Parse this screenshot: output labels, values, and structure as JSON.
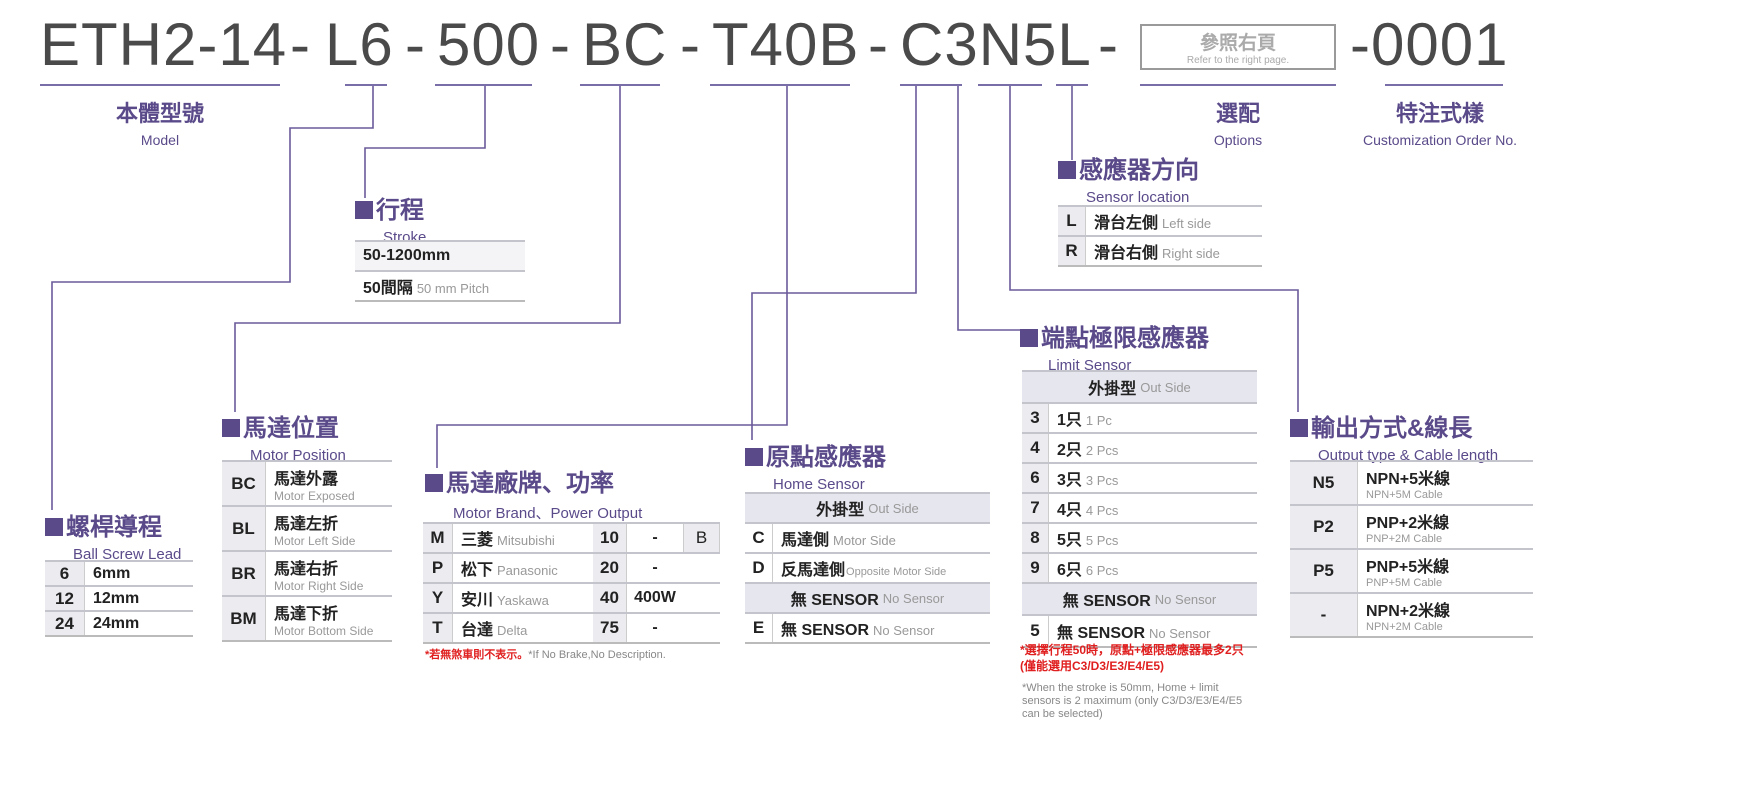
{
  "code": {
    "parts": [
      "ETH2-14",
      "-",
      "L6",
      "-",
      "500",
      "-",
      "BC",
      "-",
      "T40B",
      "-",
      "C3N5L",
      "-",
      "-0001"
    ],
    "options_box": {
      "zh": "參照右頁",
      "en": "Refer to the right page."
    }
  },
  "labels": {
    "model": {
      "zh": "本體型號",
      "en": "Model"
    },
    "options": {
      "zh": "選配",
      "en": "Options"
    },
    "custom": {
      "zh": "特注式樣",
      "en": "Customization Order No."
    }
  },
  "lead": {
    "zh": "螺桿導程",
    "en": "Ball Screw Lead",
    "rows": [
      [
        "6",
        "6mm"
      ],
      [
        "12",
        "12mm"
      ],
      [
        "24",
        "24mm"
      ]
    ]
  },
  "stroke": {
    "zh": "行程",
    "en": "Stroke",
    "rows": [
      {
        "a": "50-1200mm"
      },
      {
        "a": "50間隔",
        "b": "50 mm Pitch"
      }
    ]
  },
  "motor_pos": {
    "zh": "馬達位置",
    "en": "Motor Position",
    "rows": [
      [
        "BC",
        "馬達外露",
        "Motor Exposed"
      ],
      [
        "BL",
        "馬達左折",
        "Motor Left Side"
      ],
      [
        "BR",
        "馬達右折",
        "Motor Right Side"
      ],
      [
        "BM",
        "馬達下折",
        "Motor Bottom Side"
      ]
    ]
  },
  "motor_brand": {
    "zh": "馬達廠牌、功率",
    "en": "Motor Brand、Power Output",
    "rows": [
      [
        "M",
        "三菱",
        "Mitsubishi",
        "10",
        "-",
        "B"
      ],
      [
        "P",
        "松下",
        "Panasonic",
        "20",
        "-",
        ""
      ],
      [
        "Y",
        "安川",
        "Yaskawa",
        "40",
        "400W",
        ""
      ],
      [
        "T",
        "台達",
        "Delta",
        "75",
        "-",
        ""
      ]
    ],
    "note_red": "*若無煞車則不表示。",
    "note_en": "*If No Brake,No Description."
  },
  "home": {
    "zh": "原點感應器",
    "en": "Home Sensor",
    "header": [
      "外掛型",
      "Out Side"
    ],
    "rows": [
      [
        "C",
        "馬達側",
        "Motor Side"
      ],
      [
        "D",
        "反馬達側",
        "Opposite Motor Side"
      ]
    ],
    "header2": [
      "無 SENSOR",
      "No Sensor"
    ],
    "last": [
      "E",
      "無 SENSOR",
      "No Sensor"
    ]
  },
  "location": {
    "zh": "感應器方向",
    "en": "Sensor location",
    "rows": [
      [
        "L",
        "滑台左側",
        "Left side"
      ],
      [
        "R",
        "滑台右側",
        "Right side"
      ]
    ]
  },
  "limit": {
    "zh": "端點極限感應器",
    "en": "Limit Sensor",
    "header": [
      "外掛型",
      "Out Side"
    ],
    "rows": [
      [
        "3",
        "1只",
        "1 Pc"
      ],
      [
        "4",
        "2只",
        "2 Pcs"
      ],
      [
        "6",
        "3只",
        "3 Pcs"
      ],
      [
        "7",
        "4只",
        "4 Pcs"
      ],
      [
        "8",
        "5只",
        "5 Pcs"
      ],
      [
        "9",
        "6只",
        "6 Pcs"
      ]
    ],
    "header2": [
      "無 SENSOR",
      "No Sensor"
    ],
    "last": [
      "5",
      "無 SENSOR",
      "No Sensor"
    ],
    "note_red": "*選擇行程50時，原點+極限感應器最多2只 (僅能選用C3/D3/E3/E4/E5)",
    "note_en": "*When the stroke is 50mm, Home + limit sensors is 2 maximum (only C3/D3/E3/E4/E5 can be selected)"
  },
  "output": {
    "zh": "輸出方式&線長",
    "en": "Output type & Cable length",
    "rows": [
      [
        "N5",
        "NPN+5米線",
        "NPN+5M Cable"
      ],
      [
        "P2",
        "PNP+2米線",
        "PNP+2M Cable"
      ],
      [
        "P5",
        "PNP+5米線",
        "PNP+5M Cable"
      ],
      [
        "-",
        "NPN+2米線",
        "NPN+2M Cable"
      ]
    ]
  },
  "colors": {
    "accent": "#5a4a8a",
    "note": "#e02020"
  }
}
